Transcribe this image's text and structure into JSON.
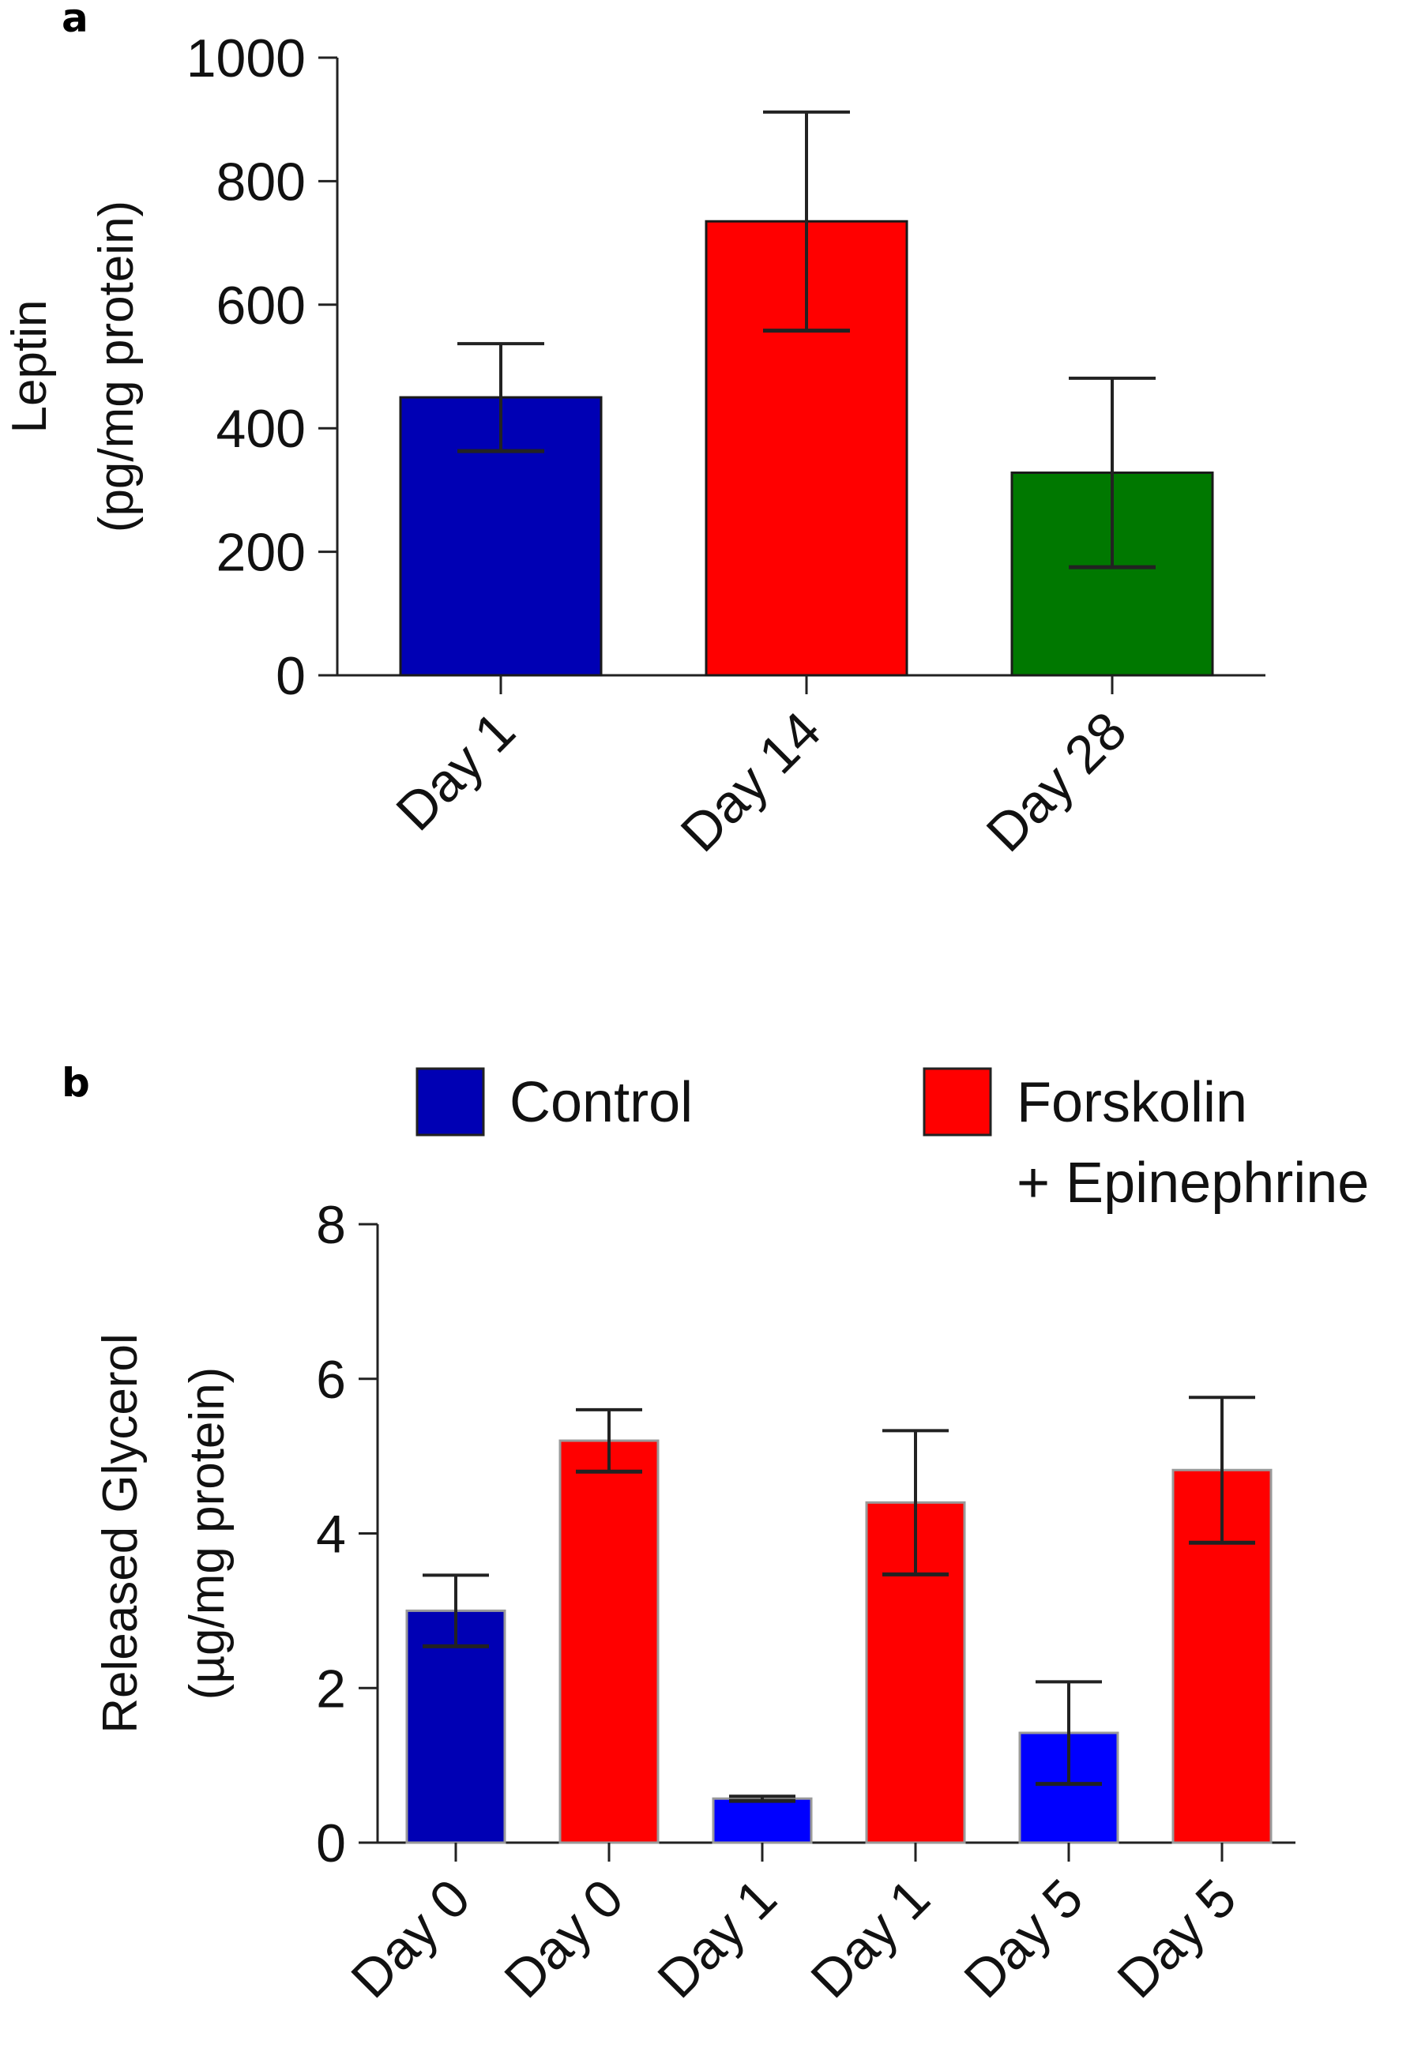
{
  "figure": {
    "panel_a_label": "a",
    "panel_b_label": "b"
  },
  "chart_data": [
    {
      "id": "a",
      "type": "bar",
      "title": "",
      "ylabel_lines": [
        "Leptin",
        "(pg/mg protein)"
      ],
      "xlabel": "",
      "categories": [
        "Day 1",
        "Day 14",
        "Day 28"
      ],
      "values": [
        450,
        735,
        328
      ],
      "errors": [
        87,
        177,
        153
      ],
      "colors": [
        "#0000B4",
        "#FF0000",
        "#007800"
      ],
      "ylim": [
        0,
        1000
      ],
      "yticks": [
        0,
        200,
        400,
        600,
        800,
        1000
      ],
      "ytick_labels": [
        "0",
        "200",
        "400",
        "600",
        "800",
        "1000"
      ],
      "grid": false
    },
    {
      "id": "b",
      "type": "bar",
      "title": "",
      "ylabel_lines": [
        "Released Glycerol",
        "(µg/mg protein)"
      ],
      "xlabel": "",
      "categories": [
        "Day 0",
        "Day 0",
        "Day 1",
        "Day 1",
        "Day 5",
        "Day 5"
      ],
      "values": [
        3.0,
        5.2,
        0.57,
        4.4,
        1.42,
        4.82
      ],
      "errors": [
        0.46,
        0.4,
        0.03,
        0.93,
        0.66,
        0.94
      ],
      "groups": [
        "Control",
        "Forskolin + Epinephrine",
        "Control",
        "Forskolin + Epinephrine",
        "Control",
        "Forskolin + Epinephrine"
      ],
      "colors": [
        "#0000B4",
        "#FF0000",
        "#0000FF",
        "#FF0000",
        "#0000FF",
        "#FF0000"
      ],
      "ylim": [
        0,
        8
      ],
      "yticks": [
        0,
        2,
        4,
        6,
        8
      ],
      "ytick_labels": [
        "0",
        "2",
        "4",
        "6",
        "8"
      ],
      "legend": [
        {
          "label": "Control",
          "color": "#0000B4"
        },
        {
          "label_lines": [
            "Forskolin",
            "+ Epinephrine"
          ],
          "color": "#FF0000"
        }
      ],
      "legend_position": "top",
      "grid": false
    }
  ]
}
